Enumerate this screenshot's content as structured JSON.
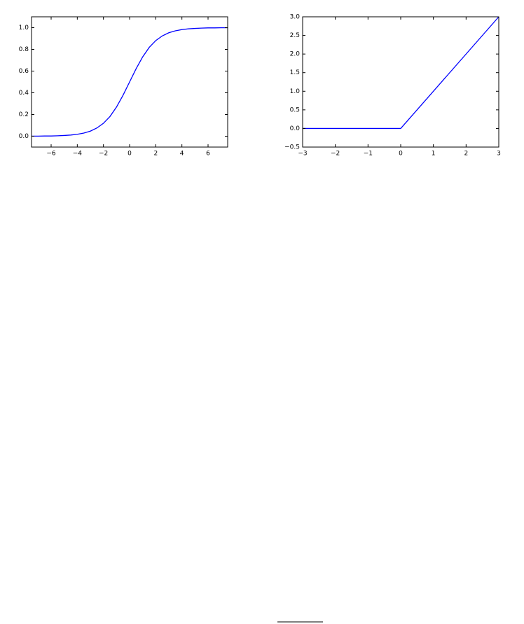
{
  "chart_data": [
    {
      "type": "line",
      "x": [
        -7.5,
        -7,
        -6.5,
        -6,
        -5.5,
        -5,
        -4.5,
        -4,
        -3.5,
        -3,
        -2.5,
        -2,
        -1.5,
        -1,
        -0.5,
        0,
        0.5,
        1,
        1.5,
        2,
        2.5,
        3,
        3.5,
        4,
        4.5,
        5,
        5.5,
        6,
        6.5,
        7,
        7.5
      ],
      "values": [
        0.001,
        0.001,
        0.002,
        0.002,
        0.004,
        0.007,
        0.011,
        0.018,
        0.029,
        0.047,
        0.076,
        0.119,
        0.182,
        0.269,
        0.378,
        0.5,
        0.622,
        0.731,
        0.818,
        0.881,
        0.924,
        0.953,
        0.971,
        0.982,
        0.989,
        0.993,
        0.996,
        0.998,
        0.998,
        0.999,
        0.999
      ],
      "color": "#0000ff",
      "xlim": [
        -7.5,
        7.5
      ],
      "xticks": [
        {
          "value": -6,
          "label": "−6"
        },
        {
          "value": -4,
          "label": "−4"
        },
        {
          "value": -2,
          "label": "−2"
        },
        0,
        2,
        4,
        6
      ],
      "ylim": [
        -0.1,
        1.1
      ],
      "yticks": [
        {
          "value": 0,
          "label": "0.0"
        },
        0.2,
        0.4,
        0.6,
        0.8,
        {
          "value": 1,
          "label": "1.0"
        }
      ]
    },
    {
      "type": "line",
      "x": [
        -3,
        0,
        3
      ],
      "values": [
        0,
        0,
        3
      ],
      "color": "#0000ff",
      "xlim": [
        -3,
        3
      ],
      "xticks": [
        {
          "value": -3,
          "label": "−3"
        },
        {
          "value": -2,
          "label": "−2"
        },
        {
          "value": -1,
          "label": "−1"
        },
        0,
        1,
        2,
        3
      ],
      "ylim": [
        -0.5,
        3
      ],
      "yticks": [
        {
          "value": -0.5,
          "label": "−0.5"
        },
        {
          "value": 0,
          "label": "0.0"
        },
        0.5,
        {
          "value": 1,
          "label": "1.0"
        },
        1.5,
        {
          "value": 2,
          "label": "2.0"
        },
        2.5,
        {
          "value": 3,
          "label": "3.0"
        }
      ]
    }
  ]
}
